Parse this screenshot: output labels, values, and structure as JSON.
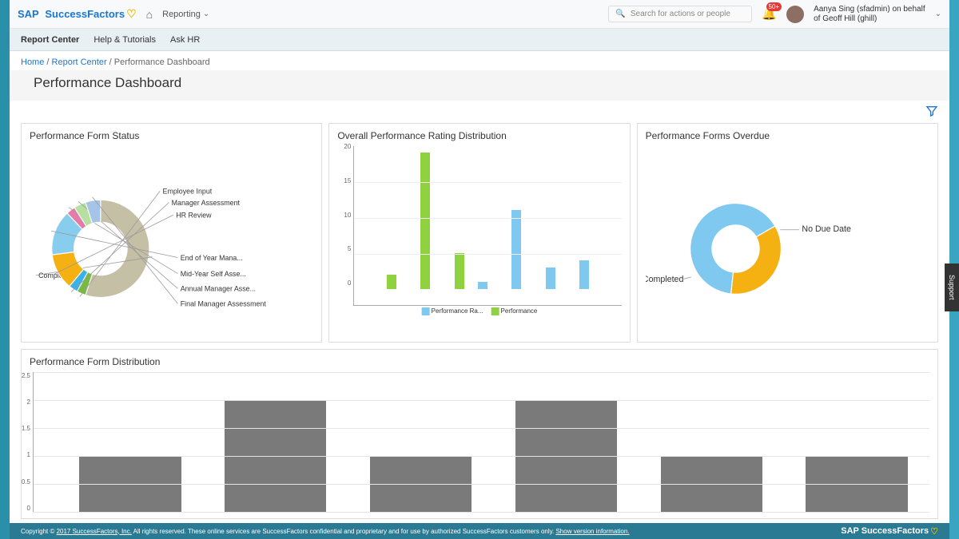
{
  "header": {
    "brand_sap": "SAP",
    "brand_sf": "SuccessFactors",
    "reporting_label": "Reporting",
    "search_placeholder": "Search for actions or people",
    "notif_count": "50+",
    "user_line1": "Aanya Sing (sfadmin) on behalf",
    "user_line2": "of Geoff Hill (ghill)"
  },
  "subnav": {
    "items": [
      "Report Center",
      "Help & Tutorials",
      "Ask HR"
    ]
  },
  "breadcrumb": {
    "home": "Home",
    "report_center": "Report Center",
    "current": "Performance Dashboard"
  },
  "page_title": "Performance Dashboard",
  "support_tab": "Support",
  "card1": {
    "title": "Performance Form Status",
    "type": "donut",
    "inner_radius": 30,
    "outer_radius": 55,
    "slices": [
      {
        "label": "Completed",
        "value": 55,
        "color": "#c5bfa5"
      },
      {
        "label": "Employee Input",
        "value": 3,
        "color": "#78b843"
      },
      {
        "label": "Manager Assessment",
        "value": 3,
        "color": "#3bb1e8"
      },
      {
        "label": "HR Review",
        "value": 12,
        "color": "#f5b012"
      },
      {
        "label": "End of Year Mana...",
        "value": 15,
        "color": "#88cdee"
      },
      {
        "label": "Mid-Year Self Asse...",
        "value": 3,
        "color": "#e57ba8"
      },
      {
        "label": "Annual Manager Asse...",
        "value": 4,
        "color": "#b5e0a0"
      },
      {
        "label": "Final Manager Assessment",
        "value": 5,
        "color": "#a5c4e8"
      }
    ]
  },
  "card2": {
    "title": "Overall Performance Rating Distribution",
    "type": "bar",
    "ylim": [
      0,
      20
    ],
    "ytick_step": 5,
    "colors": {
      "series_a": "#7fc8ef",
      "series_b": "#8fd13f"
    },
    "legend": [
      "Performance Ra...",
      "Performance"
    ],
    "pairs": [
      {
        "a": 0,
        "b": 2
      },
      {
        "a": 0,
        "b": 19
      },
      {
        "a": 0,
        "b": 5
      },
      {
        "a": 1,
        "b": 0
      },
      {
        "a": 11,
        "b": 0
      },
      {
        "a": 3,
        "b": 0
      },
      {
        "a": 4,
        "b": 0
      }
    ],
    "grid_color": "#eeeeee"
  },
  "card3": {
    "title": "Performance Forms Overdue",
    "type": "donut",
    "inner_radius": 25,
    "outer_radius": 48,
    "slices": [
      {
        "label": "Completed",
        "value": 65,
        "color": "#7fc8ef"
      },
      {
        "label": "No Due Date",
        "value": 35,
        "color": "#f5b012"
      }
    ]
  },
  "card4": {
    "title": "Performance Form Distribution",
    "type": "bar",
    "ylim": [
      0,
      2.5
    ],
    "ytick_step": 0.5,
    "bar_color": "#7a7a7a",
    "values": [
      1,
      2,
      1,
      2,
      1,
      1
    ],
    "grid_color": "#e5e5e5"
  },
  "footer": {
    "copyright": "Copyright © ",
    "company_link": "2017 SuccessFactors, Inc.",
    "rights": " All rights reserved. These online services are SuccessFactors confidential and proprietary and for use by authorized SuccessFactors customers only. ",
    "version_link": "Show version information.",
    "brand": "SAP SuccessFactors"
  }
}
